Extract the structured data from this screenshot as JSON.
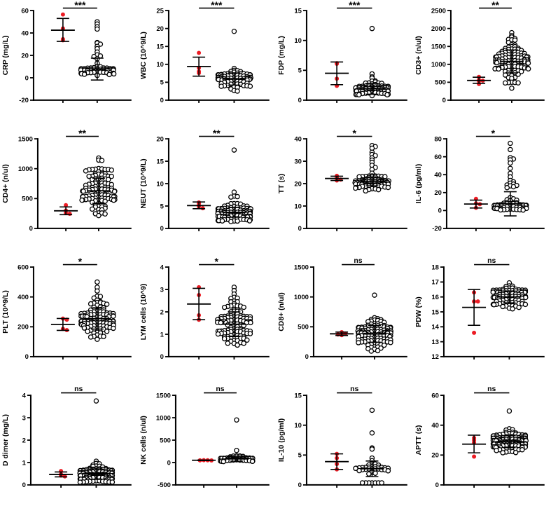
{
  "figure": {
    "kind": "4x4 grid of dot plots comparing two groups (red filled dots = small group n≈4, black open circles = large group) with mean ± SD error bars and significance marks",
    "background": "#ffffff",
    "colors": {
      "red_dot": "#EC1C24",
      "open_dot_stroke": "#000000",
      "axis": "#000000",
      "sig_text": "#000000"
    }
  },
  "chart_data": {
    "type": "scatter",
    "subtype": "beeswarm-dotplot-grid",
    "series_names": [
      "red-filled-group",
      "open-circle-group"
    ],
    "panels": [
      {
        "ylabel": "CRP (mg/L)",
        "significance": "***",
        "ylim": [
          -20,
          60
        ],
        "yticks": [
          -20,
          0,
          20,
          40,
          60
        ],
        "red": {
          "values": [
            56.5,
            44,
            34.5,
            33.5
          ],
          "mean": 42.5,
          "err_lo": 32.5,
          "err_hi": 53
        },
        "open": {
          "n": 55,
          "center": 6,
          "sd": 2.2,
          "range": [
            1.5,
            11
          ],
          "outliers": [
            50,
            48,
            45.5,
            43.5,
            31.5,
            31,
            30,
            28,
            26,
            23,
            20.5,
            19.5,
            19,
            17,
            13
          ],
          "mean": 8,
          "err_lo": -2,
          "err_hi": 17.5
        }
      },
      {
        "ylabel": "WBC (10^9/L)",
        "significance": "***",
        "ylim": [
          0,
          25
        ],
        "yticks": [
          0,
          5,
          10,
          15,
          20,
          25
        ],
        "red": {
          "values": [
            13.2,
            9.0,
            8.0,
            7.6
          ],
          "mean": 9.4,
          "err_lo": 6.7,
          "err_hi": 12.0
        },
        "open": {
          "n": 85,
          "center": 5.8,
          "sd": 1.4,
          "range": [
            2.2,
            9.8
          ],
          "outliers": [
            19.2
          ],
          "mean": 5.9,
          "err_lo": 4.2,
          "err_hi": 7.6
        }
      },
      {
        "ylabel": "FDP (mg/L)",
        "significance": "***",
        "ylim": [
          0,
          15
        ],
        "yticks": [
          0,
          5,
          10,
          15
        ],
        "red": {
          "values": [
            6.2,
            6.1,
            3.6,
            2.4
          ],
          "mean": 4.5,
          "err_lo": 2.6,
          "err_hi": 6.4
        },
        "open": {
          "n": 85,
          "center": 1.8,
          "sd": 0.6,
          "range": [
            0.7,
            3.4
          ],
          "outliers": [
            12,
            4.4,
            3.9,
            3.7
          ],
          "mean": 1.9,
          "err_lo": 1.0,
          "err_hi": 2.8
        }
      },
      {
        "ylabel": "CD3+ (n/ul)",
        "significance": "**",
        "ylim": [
          0,
          2500
        ],
        "yticks": [
          0,
          500,
          1000,
          1500,
          2000,
          2500
        ],
        "red": {
          "values": [
            650,
            560,
            545,
            530,
            450
          ],
          "mean": 550,
          "err_lo": 470,
          "err_hi": 640
        },
        "open": {
          "n": 115,
          "center": 1050,
          "sd": 320,
          "range": [
            230,
            1980
          ],
          "outliers": [],
          "mean": 1080,
          "err_lo": 760,
          "err_hi": 1400
        }
      },
      {
        "ylabel": "CD4+ (n/ul)",
        "significance": "**",
        "ylim": [
          0,
          1500
        ],
        "yticks": [
          0,
          500,
          1000,
          1500
        ],
        "red": {
          "values": [
            390,
            300,
            260,
            245
          ],
          "mean": 295,
          "err_lo": 230,
          "err_hi": 360
        },
        "open": {
          "n": 115,
          "center": 620,
          "sd": 220,
          "range": [
            185,
            1270
          ],
          "outliers": [],
          "mean": 630,
          "err_lo": 420,
          "err_hi": 840
        }
      },
      {
        "ylabel": "NEUT (10^9/L)",
        "significance": "**",
        "ylim": [
          0,
          20
        ],
        "yticks": [
          0,
          5,
          10,
          15,
          20
        ],
        "red": {
          "values": [
            5.8,
            5.5,
            4.9,
            4.5
          ],
          "mean": 5.1,
          "err_lo": 4.4,
          "err_hi": 5.9
        },
        "open": {
          "n": 95,
          "center": 3.4,
          "sd": 1.0,
          "range": [
            1.4,
            6.6
          ],
          "outliers": [
            17.5,
            8.1,
            7.2,
            7.1,
            7.0
          ],
          "mean": 3.6,
          "err_lo": 2.5,
          "err_hi": 4.7
        }
      },
      {
        "ylabel": "TT (s)",
        "significance": "*",
        "ylim": [
          0,
          40
        ],
        "yticks": [
          0,
          10,
          20,
          30,
          40
        ],
        "red": {
          "values": [
            23.5,
            22.6,
            21.8,
            21.4
          ],
          "mean": 22.3,
          "err_lo": 21.4,
          "err_hi": 23.3
        },
        "open": {
          "n": 95,
          "center": 20.6,
          "sd": 1.7,
          "range": [
            15.3,
            24.8
          ],
          "outliers": [
            37,
            36.5,
            35.8,
            34,
            33,
            32.5,
            31.5,
            30.5,
            29.5,
            28.2,
            27.2,
            26.3
          ],
          "mean": 21,
          "err_lo": 19,
          "err_hi": 23
        }
      },
      {
        "ylabel": "IL-6 (pg/ml)",
        "significance": "*",
        "ylim": [
          -20,
          80
        ],
        "yticks": [
          -20,
          0,
          20,
          40,
          60,
          80
        ],
        "red": {
          "values": [
            13,
            8,
            7,
            3
          ],
          "mean": 7.2,
          "err_lo": 2.8,
          "err_hi": 11.6
        },
        "open": {
          "n": 45,
          "center": 4,
          "sd": 2.6,
          "range": [
            0.3,
            10
          ],
          "outliers": [
            75,
            68,
            59,
            57.5,
            56.5,
            53,
            47,
            41.5,
            37.5,
            33.5,
            32,
            30.5,
            29.5,
            28.5,
            28,
            27.5,
            26.5,
            25.5,
            14.5,
            13,
            12,
            11.5,
            11
          ],
          "mean": 7.5,
          "err_lo": -6,
          "err_hi": 21
        }
      },
      {
        "ylabel": "PLT (10^9/L)",
        "significance": "*",
        "ylim": [
          0,
          600
        ],
        "yticks": [
          0,
          200,
          400,
          600
        ],
        "red": {
          "values": [
            255,
            248,
            186,
            178
          ],
          "mean": 216,
          "err_lo": 176,
          "err_hi": 256
        },
        "open": {
          "n": 115,
          "center": 250,
          "sd": 65,
          "range": [
            108,
            430
          ],
          "outliers": [
            500,
            465,
            440
          ],
          "mean": 255,
          "err_lo": 185,
          "err_hi": 325
        }
      },
      {
        "ylabel": "LYM cells (10^9)",
        "significance": "*",
        "ylim": [
          0,
          4
        ],
        "yticks": [
          0,
          1,
          2,
          3,
          4
        ],
        "red": {
          "values": [
            3.1,
            2.75,
            1.85,
            1.65
          ],
          "mean": 2.35,
          "err_lo": 1.65,
          "err_hi": 3.05
        },
        "open": {
          "n": 115,
          "center": 1.45,
          "sd": 0.55,
          "range": [
            0.45,
            2.85
          ],
          "outliers": [
            3.1,
            2.95
          ],
          "mean": 1.45,
          "err_lo": 0.9,
          "err_hi": 2.0
        }
      },
      {
        "ylabel": "CD8+ (n/ul)",
        "significance": "ns",
        "ylim": [
          0,
          1500
        ],
        "yticks": [
          0,
          500,
          1000,
          1500
        ],
        "red": {
          "values": [
            410,
            388,
            372,
            360
          ],
          "mean": 383,
          "err_lo": 355,
          "err_hi": 412
        },
        "open": {
          "n": 115,
          "center": 380,
          "sd": 140,
          "range": [
            80,
            840
          ],
          "outliers": [
            1030
          ],
          "mean": 380,
          "err_lo": 240,
          "err_hi": 520
        }
      },
      {
        "ylabel": "PDW (%)",
        "significance": "ns",
        "ylim": [
          12,
          18
        ],
        "yticks": [
          12,
          13,
          14,
          15,
          16,
          17,
          18
        ],
        "red": {
          "values": [
            16.3,
            15.7,
            15.7,
            13.6
          ],
          "mean": 15.3,
          "err_lo": 14.1,
          "err_hi": 16.5
        },
        "open": {
          "n": 90,
          "center": 16.0,
          "sd": 0.38,
          "range": [
            15.2,
            17.1
          ],
          "outliers": [],
          "mean": 16.0,
          "err_lo": 15.6,
          "err_hi": 16.4
        }
      },
      {
        "ylabel": "D dimer (mg/L)",
        "significance": "ns",
        "ylim": [
          0,
          4
        ],
        "yticks": [
          0,
          1,
          2,
          3,
          4
        ],
        "red": {
          "values": [
            0.62,
            0.48,
            0.42,
            0.38
          ],
          "mean": 0.47,
          "err_lo": 0.36,
          "err_hi": 0.58
        },
        "open": {
          "n": 110,
          "center": 0.45,
          "sd": 0.25,
          "range": [
            0.12,
            1.2
          ],
          "outliers": [
            3.75
          ],
          "mean": 0.5,
          "err_lo": 0.25,
          "err_hi": 0.75
        }
      },
      {
        "ylabel": "NK cells (n/ul)",
        "significance": "ns",
        "ylim": [
          -500,
          1500
        ],
        "yticks": [
          -500,
          0,
          500,
          1000,
          1500
        ],
        "red": {
          "values": [
            52,
            50,
            49,
            47
          ],
          "mean": 50,
          "err_lo": 44,
          "err_hi": 56
        },
        "open": {
          "n": 48,
          "center": 75,
          "sd": 40,
          "range": [
            15,
            200
          ],
          "outliers": [
            950,
            270
          ],
          "mean": 80,
          "err_lo": 30,
          "err_hi": 130
        }
      },
      {
        "ylabel": "IL-10 (pg/ml)",
        "significance": "ns",
        "ylim": [
          0,
          15
        ],
        "yticks": [
          0,
          5,
          10,
          15
        ],
        "red": {
          "values": [
            5.2,
            4.5,
            3.5,
            2.6
          ],
          "mean": 3.9,
          "err_lo": 2.6,
          "err_hi": 5.2
        },
        "open": {
          "n": 30,
          "center": 2.8,
          "sd": 0.6,
          "range": [
            1.6,
            4.2
          ],
          "outliers": [
            12.5,
            8.7,
            6.2,
            6.0,
            4.5,
            0.35,
            0.35,
            0.35,
            0.35,
            0.35,
            0.35,
            0.35
          ],
          "mean": 2.7,
          "err_lo": 1.4,
          "err_hi": 4.0
        }
      },
      {
        "ylabel": "APTT (s)",
        "significance": "ns",
        "ylim": [
          0,
          60
        ],
        "yticks": [
          0,
          20,
          40,
          60
        ],
        "red": {
          "values": [
            31.5,
            30,
            28.5,
            19
          ],
          "mean": 27.3,
          "err_lo": 21.5,
          "err_hi": 33.3
        },
        "open": {
          "n": 115,
          "center": 29,
          "sd": 3.8,
          "range": [
            20,
            42
          ],
          "outliers": [
            49.5
          ],
          "mean": 29,
          "err_lo": 25,
          "err_hi": 33
        }
      }
    ]
  }
}
